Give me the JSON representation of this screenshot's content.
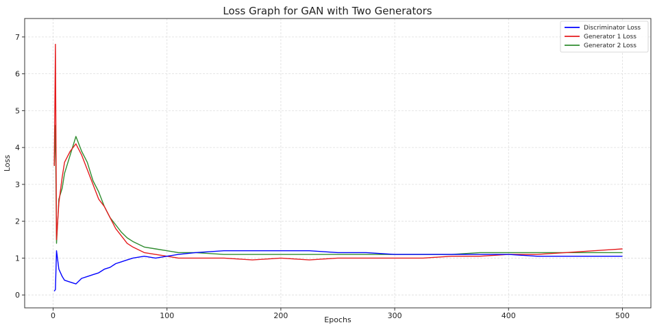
{
  "chart_data": {
    "type": "line",
    "title": "Loss Graph for GAN with Two Generators",
    "xlabel": "Epochs",
    "ylabel": "Loss",
    "xlim": [
      -25,
      525
    ],
    "ylim": [
      -0.35,
      7.5
    ],
    "x_ticks": [
      0,
      100,
      200,
      300,
      400,
      500
    ],
    "y_ticks": [
      0,
      1,
      2,
      3,
      4,
      5,
      6,
      7
    ],
    "grid": true,
    "legend_position": "top-right",
    "x": [
      1,
      2,
      3,
      5,
      8,
      10,
      15,
      20,
      25,
      30,
      35,
      40,
      45,
      50,
      55,
      60,
      65,
      70,
      80,
      90,
      100,
      110,
      125,
      150,
      175,
      200,
      225,
      250,
      275,
      300,
      325,
      350,
      375,
      400,
      425,
      450,
      475,
      500
    ],
    "series": [
      {
        "name": "Discriminator Loss",
        "color": "#0000ff",
        "values": [
          0.1,
          0.15,
          1.2,
          0.7,
          0.5,
          0.4,
          0.35,
          0.3,
          0.45,
          0.5,
          0.55,
          0.6,
          0.7,
          0.75,
          0.85,
          0.9,
          0.95,
          1.0,
          1.05,
          1.0,
          1.05,
          1.1,
          1.15,
          1.2,
          1.2,
          1.2,
          1.2,
          1.15,
          1.15,
          1.1,
          1.1,
          1.1,
          1.1,
          1.1,
          1.05,
          1.05,
          1.05,
          1.05
        ]
      },
      {
        "name": "Generator 1 Loss",
        "color": "#e41a1c",
        "values": [
          3.5,
          6.8,
          1.5,
          2.5,
          3.2,
          3.6,
          3.9,
          4.1,
          3.8,
          3.4,
          3.0,
          2.6,
          2.4,
          2.1,
          1.8,
          1.6,
          1.4,
          1.3,
          1.15,
          1.1,
          1.05,
          1.0,
          1.0,
          1.0,
          0.95,
          1.0,
          0.95,
          1.0,
          1.0,
          1.0,
          1.0,
          1.05,
          1.05,
          1.1,
          1.1,
          1.15,
          1.2,
          1.25
        ]
      },
      {
        "name": "Generator 2 Loss",
        "color": "#2e8b2e",
        "values": [
          3.5,
          4.6,
          1.4,
          2.6,
          2.9,
          3.3,
          3.8,
          4.3,
          3.9,
          3.6,
          3.1,
          2.8,
          2.4,
          2.1,
          1.9,
          1.7,
          1.55,
          1.45,
          1.3,
          1.25,
          1.2,
          1.15,
          1.15,
          1.1,
          1.1,
          1.1,
          1.1,
          1.1,
          1.1,
          1.1,
          1.1,
          1.1,
          1.15,
          1.15,
          1.15,
          1.15,
          1.15,
          1.15
        ]
      }
    ]
  }
}
